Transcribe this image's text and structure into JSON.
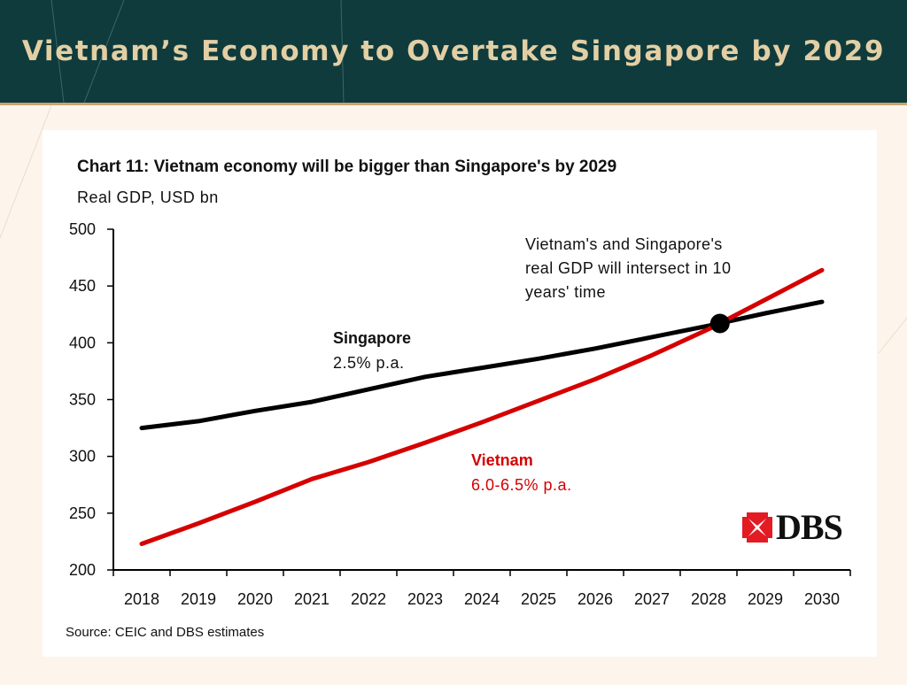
{
  "header": {
    "title": "Vietnam’s Economy to Overtake Singapore by 2029"
  },
  "chart_data": {
    "type": "line",
    "title": "Chart 11: Vietnam economy will be bigger than Singapore's by 2029",
    "subtitle": "Real GDP, USD bn",
    "xlabel": "",
    "ylabel": "Real GDP, USD bn",
    "ylim": [
      200,
      500
    ],
    "yticks": [
      200,
      250,
      300,
      350,
      400,
      450,
      500
    ],
    "categories": [
      "2018",
      "2019",
      "2020",
      "2021",
      "2022",
      "2023",
      "2024",
      "2025",
      "2026",
      "2027",
      "2028",
      "2029",
      "2030"
    ],
    "series": [
      {
        "name": "Singapore",
        "color": "#000000",
        "label": "Singapore",
        "sublabel": "2.5% p.a.",
        "values": [
          325,
          331,
          340,
          348,
          359,
          370,
          378,
          386,
          395,
          405,
          415,
          426,
          436
        ]
      },
      {
        "name": "Vietnam",
        "color": "#d50000",
        "label": "Vietnam",
        "sublabel": "6.0-6.5% p.a.",
        "values": [
          223,
          241,
          260,
          280,
          295,
          312,
          330,
          349,
          368,
          389,
          412,
          438,
          464
        ]
      }
    ],
    "intersection": {
      "x": 10.2,
      "y": 417
    },
    "annotation": [
      "Vietnam's and Singapore's",
      "real GDP will intersect in 10",
      "years' time"
    ],
    "grid": false,
    "legend": "none"
  },
  "source": "Source: CEIC and DBS estimates",
  "logo": {
    "text": "DBS",
    "color": "#e31b23"
  }
}
